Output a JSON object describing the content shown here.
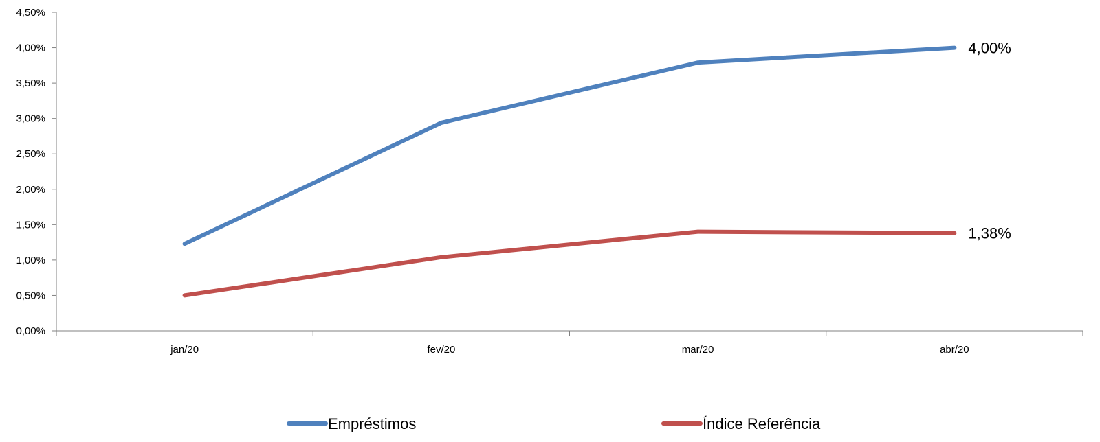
{
  "chart_data": {
    "type": "line",
    "categories": [
      "jan/20",
      "fev/20",
      "mar/20",
      "abr/20"
    ],
    "series": [
      {
        "name": "Empréstimos",
        "values": [
          1.23,
          2.94,
          3.79,
          4.0
        ],
        "color": "#4F81BD",
        "end_label": "4,00%"
      },
      {
        "name": "Índice Referência",
        "values": [
          0.5,
          1.04,
          1.4,
          1.38
        ],
        "color": "#C0504D",
        "end_label": "1,38%"
      }
    ],
    "ylim": [
      0,
      4.5
    ],
    "yticks": [
      "0,00%",
      "0,50%",
      "1,00%",
      "1,50%",
      "2,00%",
      "2,50%",
      "3,00%",
      "3,50%",
      "4,00%",
      "4,50%"
    ],
    "grid": false,
    "legend_position": "bottom",
    "title": "",
    "xlabel": "",
    "ylabel": ""
  }
}
